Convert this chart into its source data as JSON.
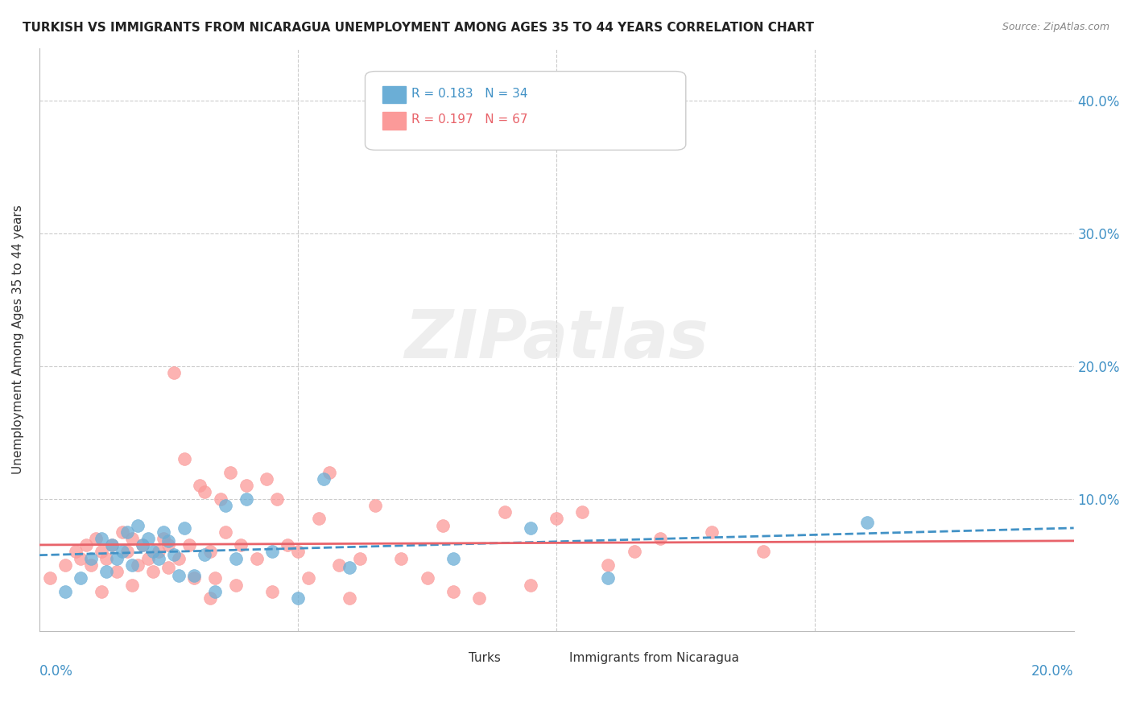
{
  "title": "TURKISH VS IMMIGRANTS FROM NICARAGUA UNEMPLOYMENT AMONG AGES 35 TO 44 YEARS CORRELATION CHART",
  "source": "Source: ZipAtlas.com",
  "ylabel": "Unemployment Among Ages 35 to 44 years",
  "ytick_values": [
    0.0,
    0.1,
    0.2,
    0.3,
    0.4
  ],
  "ytick_labels": [
    "",
    "10.0%",
    "20.0%",
    "30.0%",
    "40.0%"
  ],
  "xlim": [
    0.0,
    0.2
  ],
  "ylim": [
    0.0,
    0.44
  ],
  "watermark": "ZIPatlas",
  "legend_turks_R": "0.183",
  "legend_turks_N": "34",
  "legend_nic_R": "0.197",
  "legend_nic_N": "67",
  "turks_color": "#6baed6",
  "nic_color": "#fb9a99",
  "trendline_turks_color": "#4292c6",
  "trendline_nic_color": "#e8636a",
  "turks_scatter_x": [
    0.005,
    0.008,
    0.01,
    0.012,
    0.013,
    0.014,
    0.015,
    0.016,
    0.017,
    0.018,
    0.019,
    0.02,
    0.021,
    0.022,
    0.023,
    0.024,
    0.025,
    0.026,
    0.027,
    0.028,
    0.03,
    0.032,
    0.034,
    0.036,
    0.038,
    0.04,
    0.045,
    0.05,
    0.055,
    0.06,
    0.08,
    0.095,
    0.11,
    0.16
  ],
  "turks_scatter_y": [
    0.03,
    0.04,
    0.055,
    0.07,
    0.045,
    0.065,
    0.055,
    0.06,
    0.075,
    0.05,
    0.08,
    0.065,
    0.07,
    0.06,
    0.055,
    0.075,
    0.068,
    0.058,
    0.042,
    0.078,
    0.042,
    0.058,
    0.03,
    0.095,
    0.055,
    0.1,
    0.06,
    0.025,
    0.115,
    0.048,
    0.055,
    0.078,
    0.04,
    0.082
  ],
  "nic_scatter_x": [
    0.002,
    0.005,
    0.007,
    0.008,
    0.009,
    0.01,
    0.011,
    0.012,
    0.013,
    0.014,
    0.015,
    0.016,
    0.017,
    0.018,
    0.019,
    0.02,
    0.021,
    0.022,
    0.023,
    0.024,
    0.025,
    0.026,
    0.027,
    0.028,
    0.029,
    0.03,
    0.031,
    0.032,
    0.033,
    0.034,
    0.035,
    0.036,
    0.037,
    0.038,
    0.039,
    0.04,
    0.042,
    0.044,
    0.046,
    0.048,
    0.05,
    0.052,
    0.054,
    0.056,
    0.058,
    0.06,
    0.065,
    0.07,
    0.075,
    0.08,
    0.085,
    0.09,
    0.095,
    0.1,
    0.105,
    0.11,
    0.115,
    0.12,
    0.13,
    0.14,
    0.012,
    0.018,
    0.025,
    0.033,
    0.045,
    0.062,
    0.078
  ],
  "nic_scatter_y": [
    0.04,
    0.05,
    0.06,
    0.055,
    0.065,
    0.05,
    0.07,
    0.06,
    0.055,
    0.065,
    0.045,
    0.075,
    0.06,
    0.07,
    0.05,
    0.065,
    0.055,
    0.045,
    0.06,
    0.07,
    0.048,
    0.195,
    0.055,
    0.13,
    0.065,
    0.04,
    0.11,
    0.105,
    0.06,
    0.04,
    0.1,
    0.075,
    0.12,
    0.035,
    0.065,
    0.11,
    0.055,
    0.115,
    0.1,
    0.065,
    0.06,
    0.04,
    0.085,
    0.12,
    0.05,
    0.025,
    0.095,
    0.055,
    0.04,
    0.03,
    0.025,
    0.09,
    0.035,
    0.085,
    0.09,
    0.05,
    0.06,
    0.07,
    0.075,
    0.06,
    0.03,
    0.035,
    0.065,
    0.025,
    0.03,
    0.055,
    0.08
  ]
}
